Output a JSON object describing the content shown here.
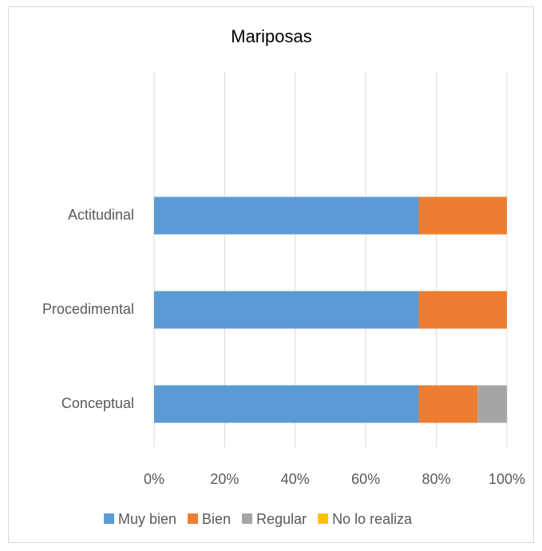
{
  "chart_data": {
    "type": "stacked_barh",
    "title": "Mariposas",
    "categories": [
      "Conceptual",
      "Procedimental",
      "Actitudinal"
    ],
    "series": [
      {
        "name": "Muy bien",
        "color": "#5b9bd5",
        "values": [
          75,
          75,
          75
        ]
      },
      {
        "name": "Bien",
        "color": "#ed7d31",
        "values": [
          16.7,
          25,
          25
        ]
      },
      {
        "name": "Regular",
        "color": "#a5a5a5",
        "values": [
          8.3,
          0,
          0
        ]
      },
      {
        "name": "No lo realiza",
        "color": "#ffc000",
        "values": [
          0,
          0,
          0
        ]
      }
    ],
    "xlim": [
      0,
      100
    ],
    "xticks": [
      {
        "value": 0,
        "label": "0%"
      },
      {
        "value": 20,
        "label": "20%"
      },
      {
        "value": 40,
        "label": "40%"
      },
      {
        "value": 60,
        "label": "60%"
      },
      {
        "value": 80,
        "label": "80%"
      },
      {
        "value": 100,
        "label": "100%"
      }
    ],
    "grid": true,
    "legend": "bottom"
  }
}
